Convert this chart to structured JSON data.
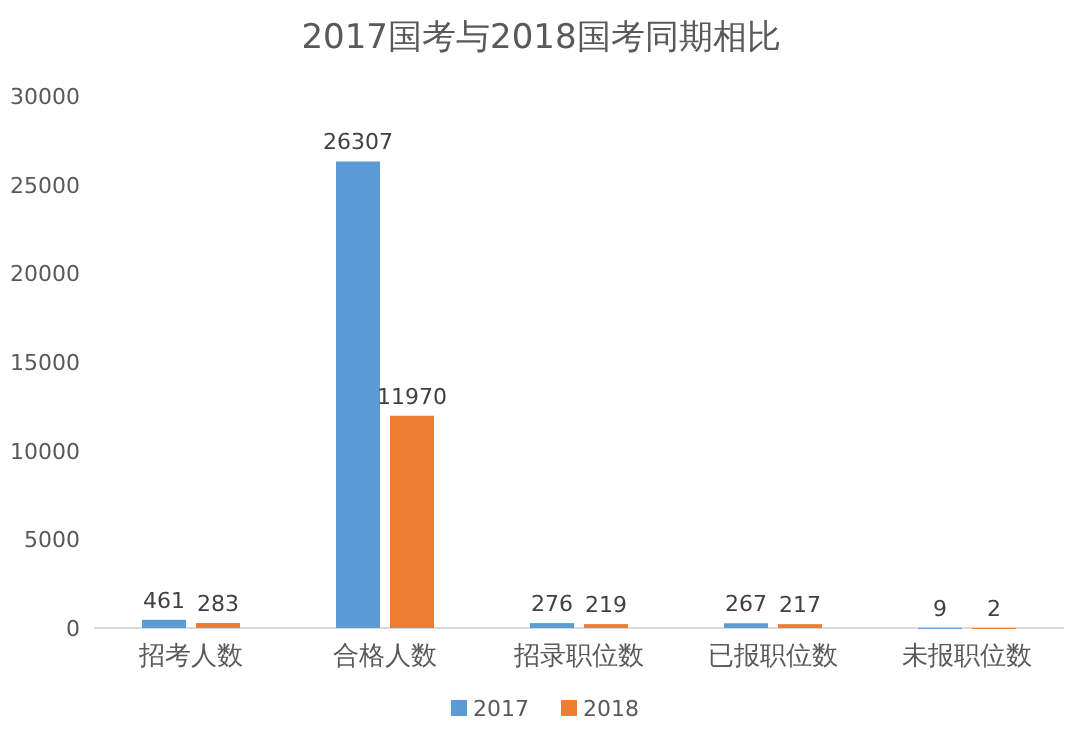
{
  "chart_data": {
    "type": "bar",
    "title": "2017国考与2018国考同期相比",
    "categories": [
      "招考人数",
      "合格人数",
      "招录职位数",
      "已报职位数",
      "未报职位数"
    ],
    "series": [
      {
        "name": "2017",
        "color": "#5b9bd5",
        "values": [
          461,
          26307,
          276,
          267,
          9
        ]
      },
      {
        "name": "2018",
        "color": "#ed7d31",
        "values": [
          283,
          11970,
          219,
          217,
          2
        ]
      }
    ],
    "ylim": [
      0,
      30000
    ],
    "yticks": [
      0,
      5000,
      10000,
      15000,
      20000,
      25000,
      30000
    ],
    "data_labels": true,
    "legend": "bottom",
    "grid": false
  }
}
